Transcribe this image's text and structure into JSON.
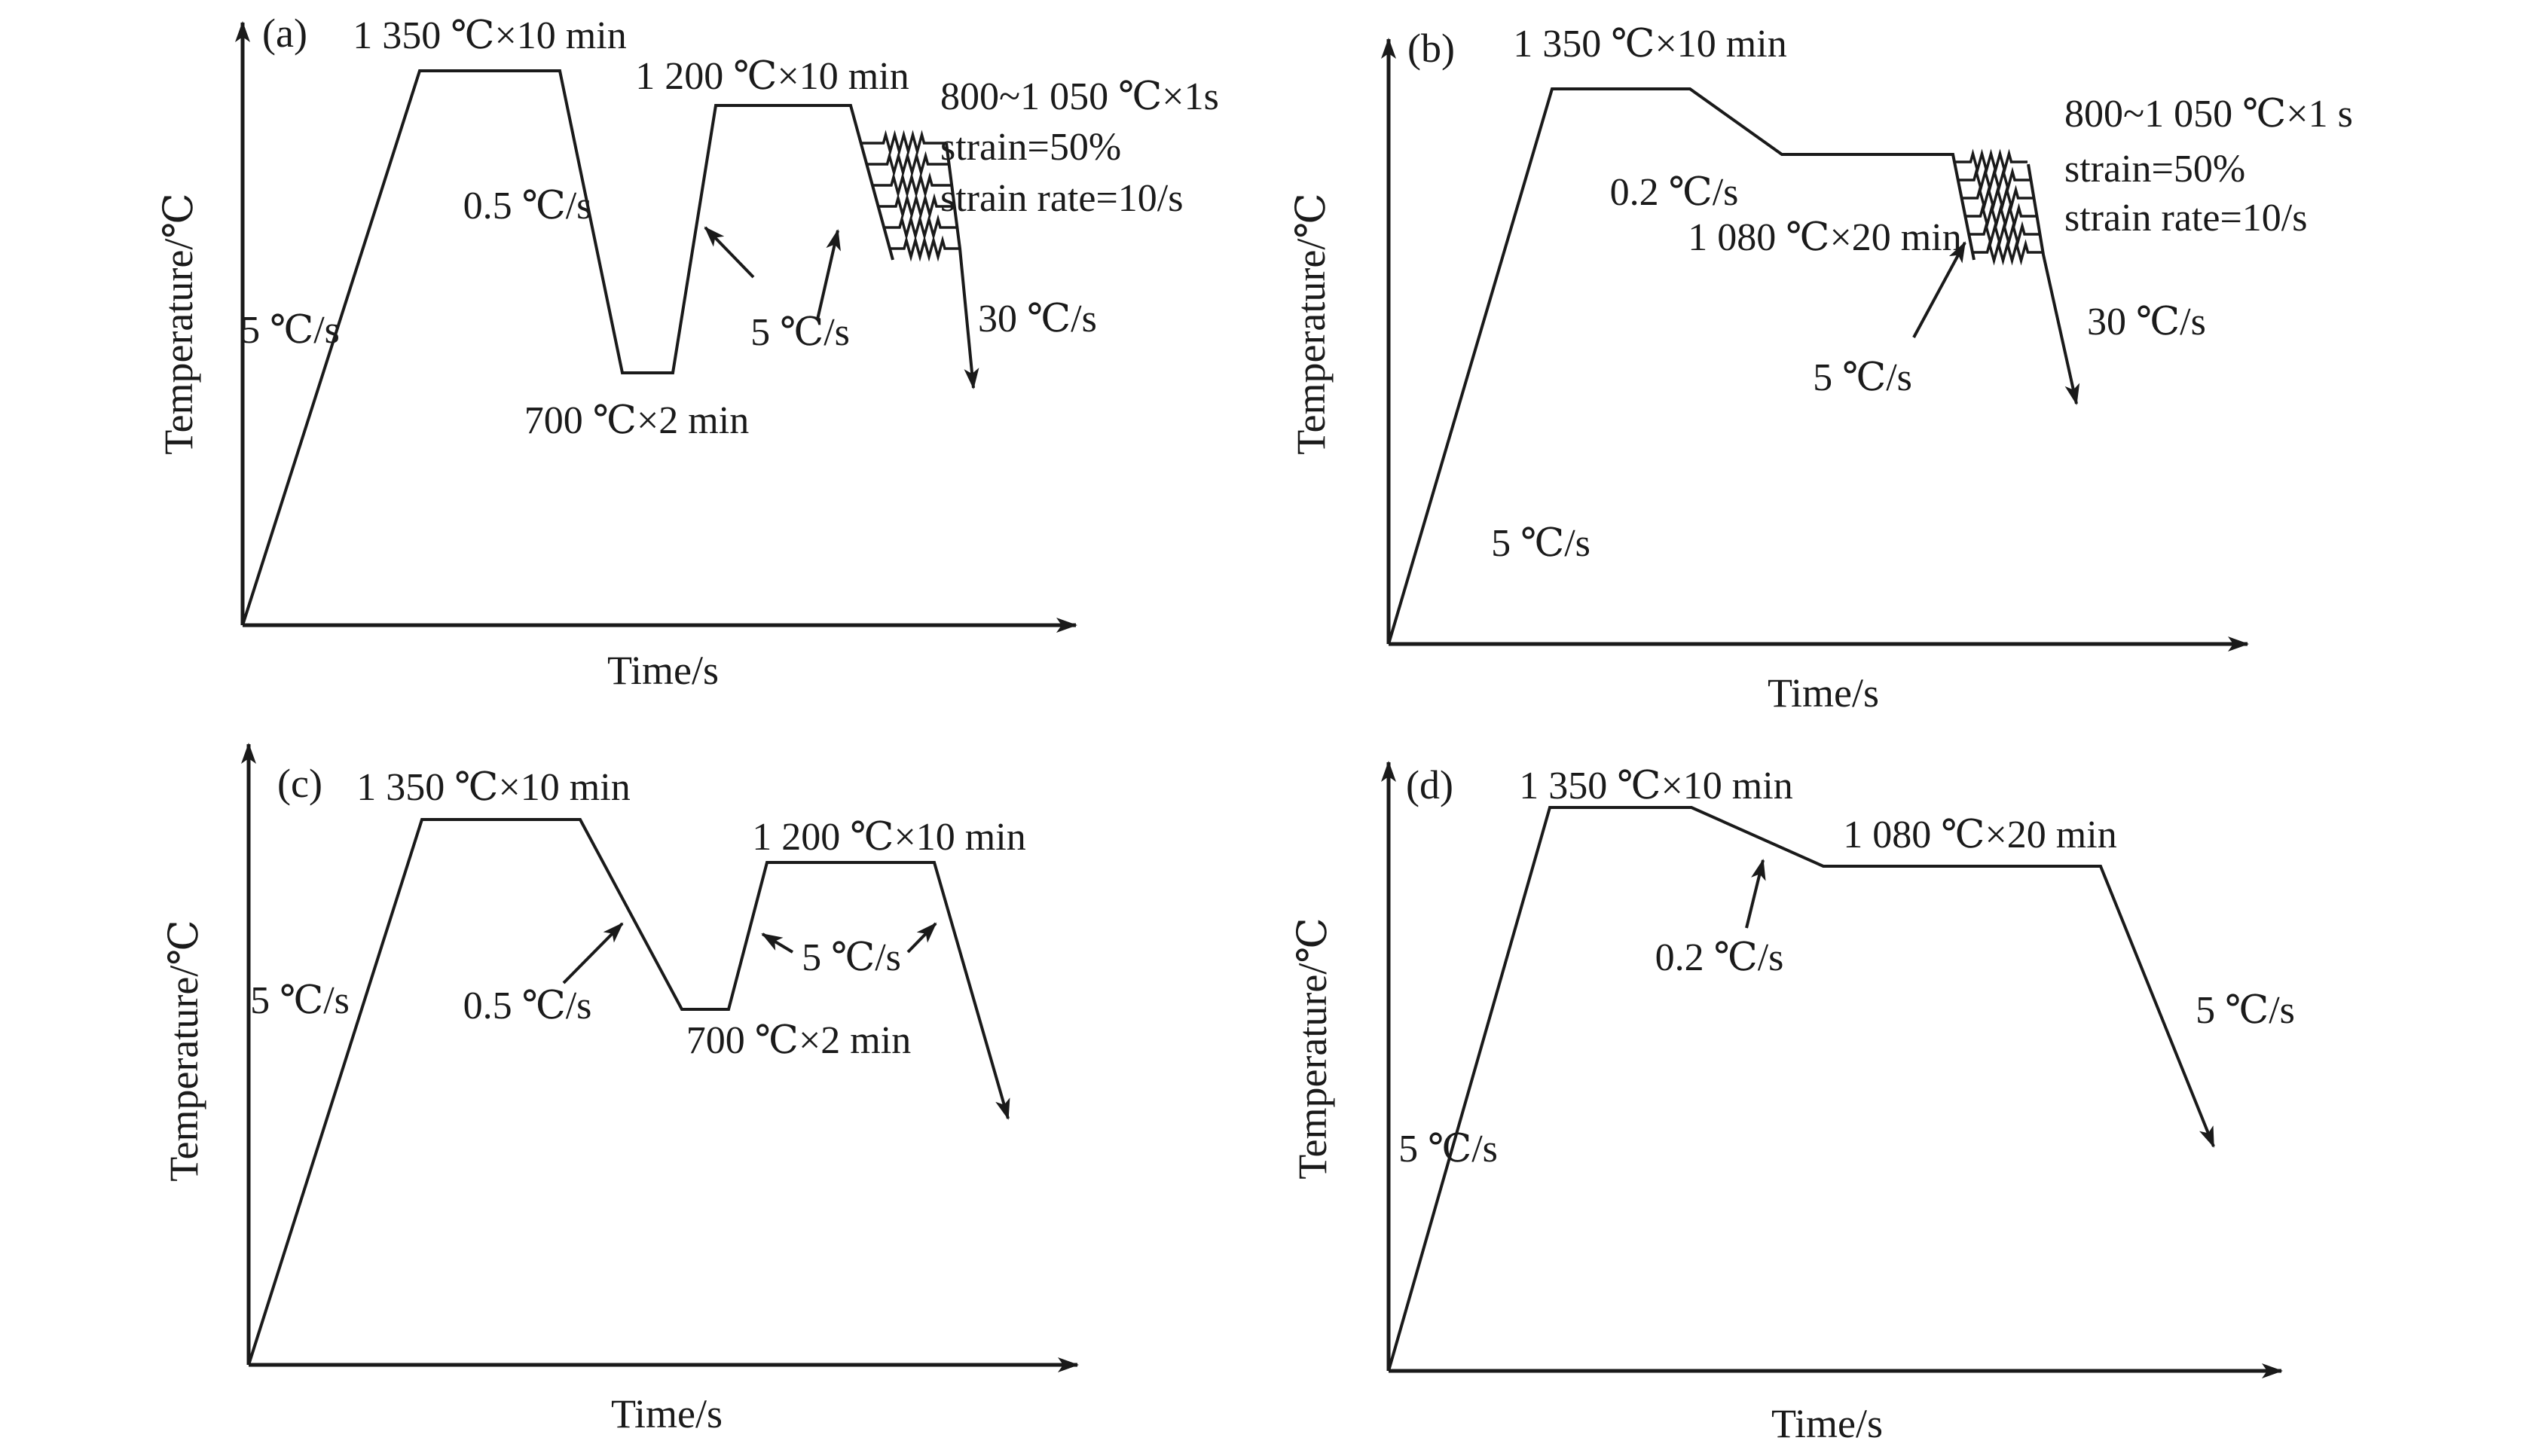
{
  "figure": {
    "type": "thermal-processing-schedule-diagrams",
    "panels": [
      {
        "id": "a",
        "label": "(a)",
        "x_axis": "Time/s",
        "y_axis": "Temperature/℃",
        "heat_rate": "5 ℃/s",
        "soak1": "1 350 ℃×10 min",
        "slow_cool_rate": "0.5 ℃/s",
        "valley_soak": "700 ℃×2 min",
        "reheat_rate": "5 ℃/s",
        "soak2": "1 200 ℃×10 min",
        "deform_temp": "800~1 050 ℃×1s",
        "strain": "strain=50%",
        "strain_rate": "strain rate=10/s",
        "quench_rate": "30 ℃/s"
      },
      {
        "id": "b",
        "label": "(b)",
        "x_axis": "Time/s",
        "y_axis": "Temperature/℃",
        "heat_rate": "5 ℃/s",
        "soak1": "1 350 ℃×10 min",
        "slow_cool_rate": "0.2 ℃/s",
        "soak2": "1 080 ℃×20 min",
        "cool_to_deform_rate": "5 ℃/s",
        "deform_temp": "800~1 050 ℃×1 s",
        "strain": "strain=50%",
        "strain_rate": "strain rate=10/s",
        "quench_rate": "30 ℃/s"
      },
      {
        "id": "c",
        "label": "(c)",
        "x_axis": "Time/s",
        "y_axis": "Temperature/℃",
        "heat_rate": "5 ℃/s",
        "soak1": "1 350 ℃×10 min",
        "slow_cool_rate": "0.5 ℃/s",
        "valley_soak": "700 ℃×2 min",
        "reheat_rate": "5 ℃/s",
        "soak2": "1 200 ℃×10 min"
      },
      {
        "id": "d",
        "label": "(d)",
        "x_axis": "Time/s",
        "y_axis": "Temperature/℃",
        "heat_rate": "5 ℃/s",
        "soak1": "1 350 ℃×10 min",
        "slow_cool_rate": "0.2 ℃/s",
        "soak2": "1 080 ℃×20 min",
        "final_cool_rate": "5 ℃/s"
      }
    ],
    "line_color": "#1a1a1a"
  }
}
